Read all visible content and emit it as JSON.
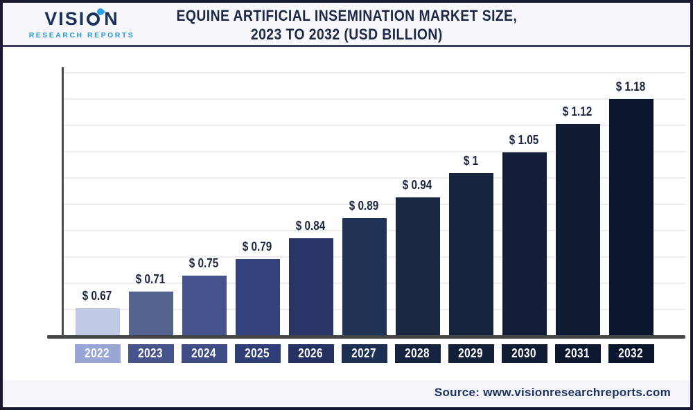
{
  "logo": {
    "name_pre": "VISI",
    "name_post": "N",
    "subtitle": "RESEARCH REPORTS",
    "navy": "#1c3159",
    "blue": "#29a3e3"
  },
  "header": {
    "title_line1": "EQUINE ARTIFICIAL INSEMINATION MARKET SIZE,",
    "title_line2": "2023 TO 2032 (USD BILLION)"
  },
  "footer": {
    "source_label": "Source: www.visionresearchreports.com"
  },
  "chart_data": {
    "type": "bar",
    "title": "Equine Artificial Insemination Market Size, 2023 to 2032 (USD Billion)",
    "categories": [
      "2022",
      "2023",
      "2024",
      "2025",
      "2026",
      "2027",
      "2028",
      "2029",
      "2030",
      "2031",
      "2032"
    ],
    "values": [
      0.67,
      0.71,
      0.75,
      0.79,
      0.84,
      0.89,
      0.94,
      1.0,
      1.05,
      1.12,
      1.18
    ],
    "value_labels": [
      "$ 0.67",
      "$ 0.71",
      "$ 0.75",
      "$ 0.79",
      "$ 0.84",
      "$ 0.89",
      "$ 0.94",
      "$ 1",
      "$ 1.05",
      "$ 1.12",
      "$ 1.18"
    ],
    "bar_colors": [
      "#c0c9e6",
      "#55648f",
      "#45538c",
      "#35427b",
      "#2a3567",
      "#1e3355",
      "#1a2742",
      "#16233e",
      "#131e38",
      "#101b34",
      "#0c172f"
    ],
    "tick_colors": [
      "#99a5d5",
      "#47548b",
      "#3f4d87",
      "#303e77",
      "#253162",
      "#1b3052",
      "#16233e",
      "#14203a",
      "#111c35",
      "#0e1931",
      "#0a142c"
    ],
    "xlabel": "",
    "ylabel": "",
    "units": "USD Billion",
    "axis_baseline_value": 0.604,
    "grid": true,
    "legend": false
  }
}
